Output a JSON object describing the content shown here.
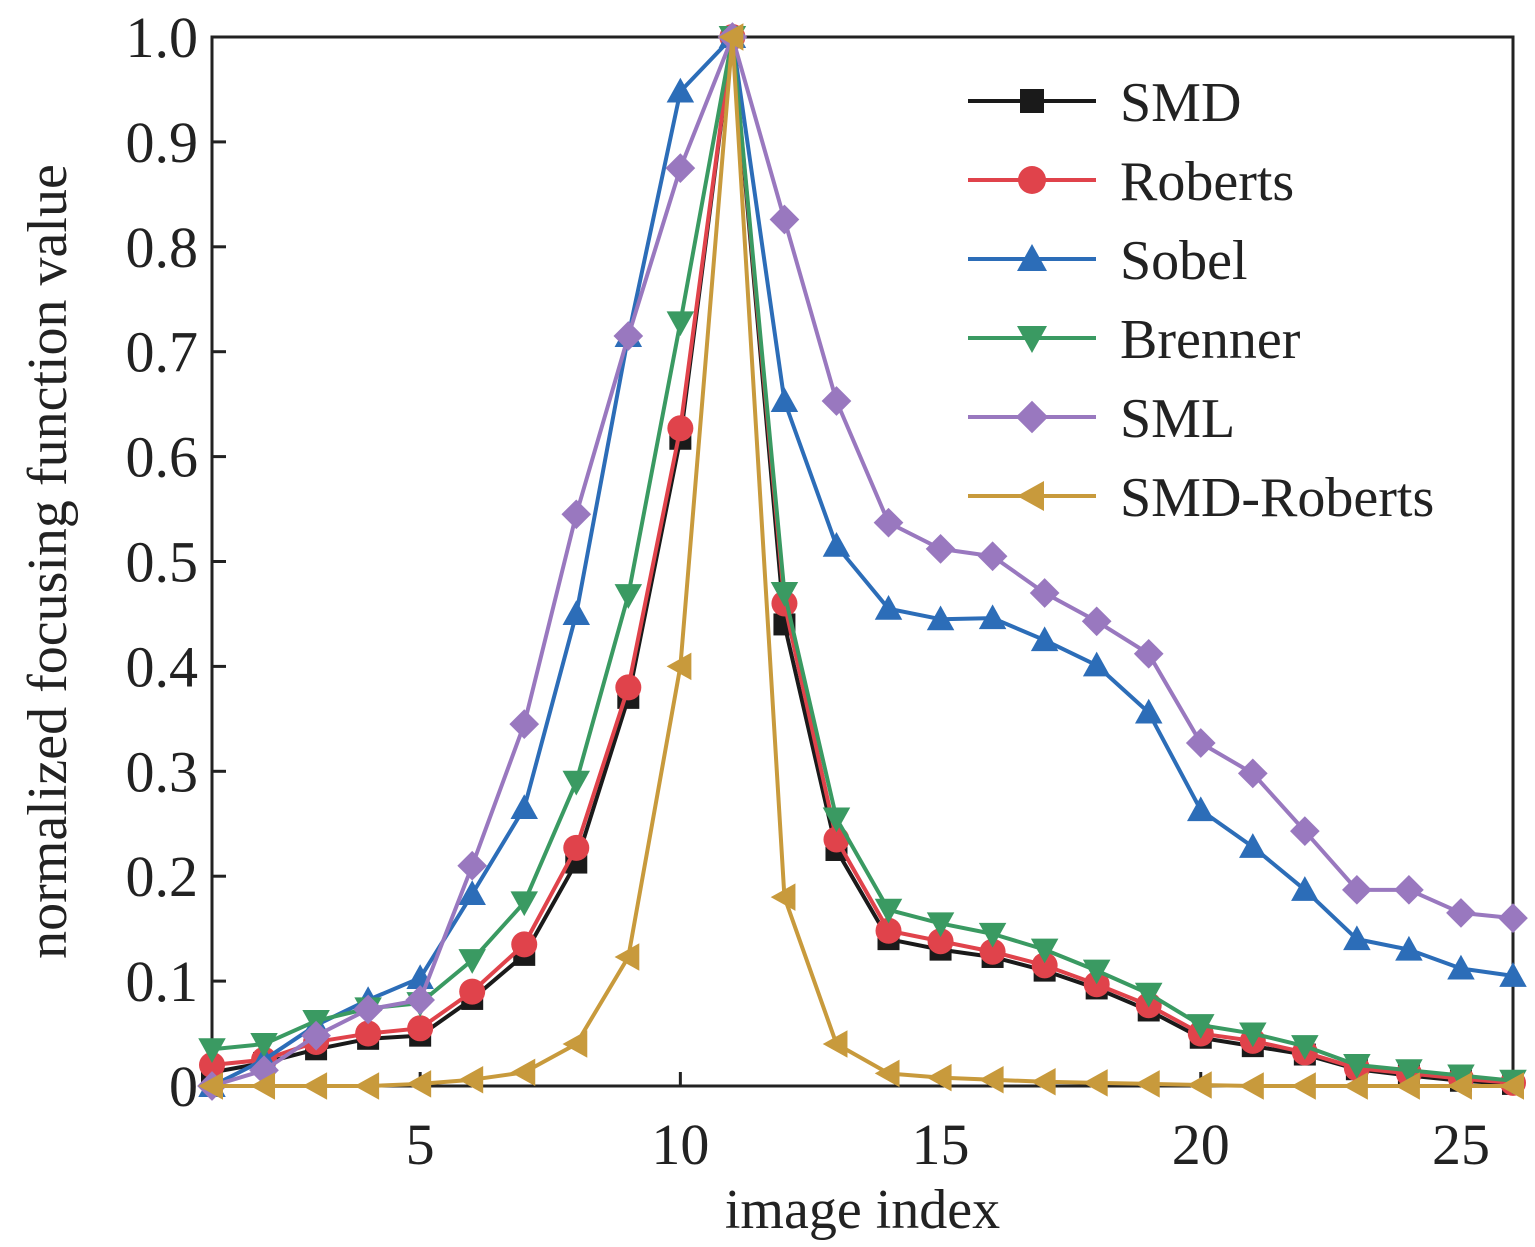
{
  "chart_data": {
    "type": "line",
    "title": "",
    "xlabel": "image index",
    "ylabel": "normalized focusing function value",
    "xlim": [
      1,
      26
    ],
    "ylim": [
      0,
      1.0
    ],
    "xticks": [
      5,
      10,
      15,
      20,
      25
    ],
    "yticks": [
      0,
      0.1,
      0.2,
      0.3,
      0.4,
      0.5,
      0.6,
      0.7,
      0.8,
      0.9,
      1.0
    ],
    "ytick_labels": [
      "0",
      "0.1",
      "0.2",
      "0.3",
      "0.4",
      "0.5",
      "0.6",
      "0.7",
      "0.8",
      "0.9",
      "1.0"
    ],
    "grid": false,
    "legend_position": "top-right",
    "x": [
      1,
      2,
      3,
      4,
      5,
      6,
      7,
      8,
      9,
      10,
      11,
      12,
      13,
      14,
      15,
      16,
      17,
      18,
      19,
      20,
      21,
      22,
      23,
      24,
      25,
      26
    ],
    "series": [
      {
        "name": "SMD",
        "color": "#1a1a1a",
        "marker": "square",
        "values": [
          0.013,
          0.022,
          0.035,
          0.045,
          0.048,
          0.083,
          0.125,
          0.213,
          0.37,
          0.617,
          1.0,
          0.44,
          0.225,
          0.14,
          0.13,
          0.123,
          0.11,
          0.093,
          0.072,
          0.046,
          0.038,
          0.03,
          0.016,
          0.01,
          0.005,
          0.002
        ]
      },
      {
        "name": "Roberts",
        "color": "#e0434b",
        "marker": "circle",
        "values": [
          0.02,
          0.025,
          0.042,
          0.05,
          0.055,
          0.09,
          0.135,
          0.227,
          0.38,
          0.627,
          1.0,
          0.46,
          0.235,
          0.148,
          0.138,
          0.128,
          0.115,
          0.097,
          0.077,
          0.05,
          0.043,
          0.032,
          0.017,
          0.012,
          0.007,
          0.003
        ]
      },
      {
        "name": "Sobel",
        "color": "#2c6db8",
        "marker": "triangle-up",
        "values": [
          0.0,
          0.025,
          0.058,
          0.082,
          0.103,
          0.183,
          0.265,
          0.45,
          0.715,
          0.948,
          1.0,
          0.653,
          0.515,
          0.455,
          0.445,
          0.446,
          0.425,
          0.401,
          0.356,
          0.263,
          0.228,
          0.187,
          0.14,
          0.13,
          0.112,
          0.105
        ]
      },
      {
        "name": "Brenner",
        "color": "#3a9a62",
        "marker": "triangle-down",
        "values": [
          0.035,
          0.04,
          0.062,
          0.074,
          0.079,
          0.12,
          0.175,
          0.29,
          0.468,
          0.728,
          1.0,
          0.47,
          0.255,
          0.168,
          0.155,
          0.145,
          0.13,
          0.11,
          0.088,
          0.058,
          0.05,
          0.038,
          0.02,
          0.015,
          0.01,
          0.005
        ]
      },
      {
        "name": "SML",
        "color": "#9978bf",
        "marker": "diamond",
        "values": [
          0.0,
          0.015,
          0.048,
          0.073,
          0.082,
          0.21,
          0.345,
          0.545,
          0.715,
          0.875,
          1.0,
          0.826,
          0.653,
          0.537,
          0.512,
          0.505,
          0.47,
          0.443,
          0.412,
          0.327,
          0.298,
          0.243,
          0.187,
          0.187,
          0.165,
          0.16
        ]
      },
      {
        "name": "SMD-Roberts",
        "color": "#c89a3c",
        "marker": "triangle-left",
        "values": [
          0.0,
          0.0,
          0.0,
          0.0,
          0.002,
          0.006,
          0.013,
          0.04,
          0.123,
          0.4,
          1.0,
          0.18,
          0.04,
          0.012,
          0.008,
          0.006,
          0.004,
          0.003,
          0.002,
          0.001,
          0.0,
          0.0,
          0.0,
          0.0,
          0.0,
          0.0
        ]
      }
    ]
  }
}
